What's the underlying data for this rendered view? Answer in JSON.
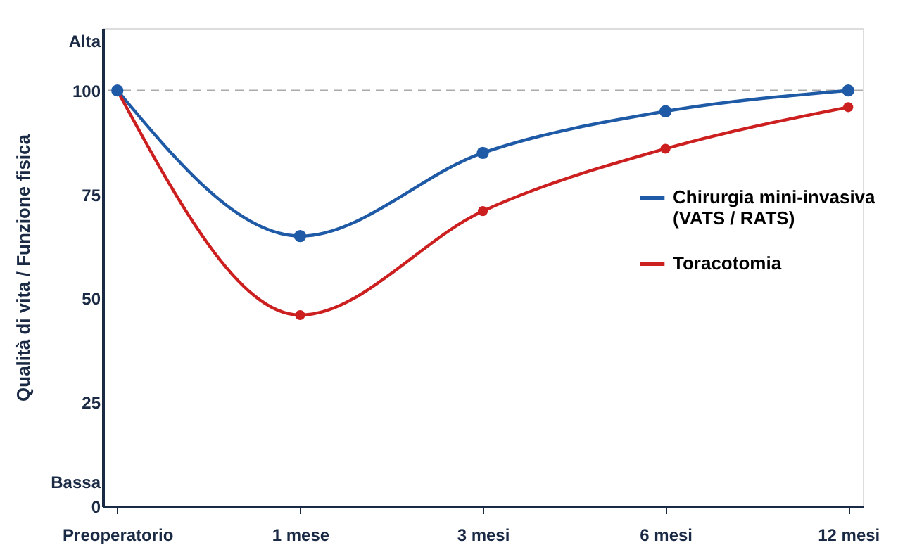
{
  "chart_data": {
    "type": "line",
    "ylabel": "Qualità di vita / Funzione fisica",
    "categories": [
      "Preoperatorio",
      "1 mese",
      "3 mesi",
      "6 mesi",
      "12 mesi"
    ],
    "series": [
      {
        "name": "Chirurgia mini-invasiva\n(VATS / RATS)",
        "color": "#1f5aa6",
        "values": [
          100,
          65,
          85,
          95,
          100
        ]
      },
      {
        "name": "Toracotomia",
        "color": "#cc1f1f",
        "values": [
          100,
          46,
          71,
          86,
          96
        ]
      }
    ],
    "ylim": [
      0,
      115
    ],
    "yticks": [
      {
        "value": 6,
        "label": "Bassa"
      },
      0,
      25,
      50,
      75,
      100,
      {
        "value": 112,
        "label": "Alta"
      }
    ],
    "ref_lines": [
      {
        "axis": "y",
        "value": 100,
        "color": "#aaaaaa",
        "line_style": "dashed"
      }
    ],
    "grid": false,
    "legend": "right",
    "marker": "circle",
    "line_style": "solid"
  }
}
